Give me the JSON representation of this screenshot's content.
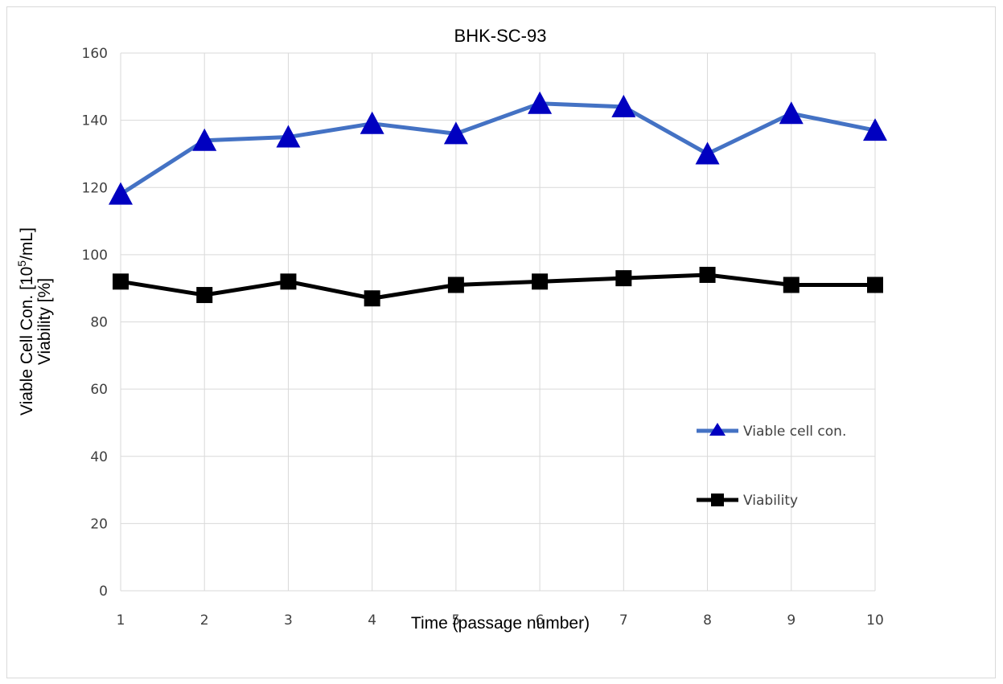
{
  "chart_data": {
    "type": "line",
    "title": "BHK-SC-93",
    "xlabel": "Time  (passage number)",
    "ylabel_line1_prefix": "Viable Cell Con.  [10",
    "ylabel_line1_sup": "5",
    "ylabel_line1_suffix": "/mL]",
    "ylabel_line2": "Viability  [%]",
    "x": [
      1,
      2,
      3,
      4,
      5,
      6,
      7,
      8,
      9,
      10
    ],
    "x_tick_labels": [
      "1",
      "2",
      "3",
      "4",
      "5",
      "6",
      "7",
      "8",
      "9",
      "10"
    ],
    "y_tick_labels": [
      "0",
      "20",
      "40",
      "60",
      "80",
      "100",
      "120",
      "140",
      "160"
    ],
    "ylim": [
      0,
      160
    ],
    "y_step": 20,
    "grid": true,
    "legend_position": "right",
    "series": [
      {
        "name": "Viable cell con.",
        "values": [
          118,
          134,
          135,
          139,
          136,
          145,
          144,
          130,
          142,
          137
        ],
        "line_color": "#4472c4",
        "marker": "triangle",
        "marker_color": "#0000c0"
      },
      {
        "name": "Viability",
        "values": [
          92,
          88,
          92,
          87,
          91,
          92,
          93,
          94,
          91,
          91
        ],
        "line_color": "#000000",
        "marker": "square",
        "marker_color": "#000000"
      }
    ]
  }
}
